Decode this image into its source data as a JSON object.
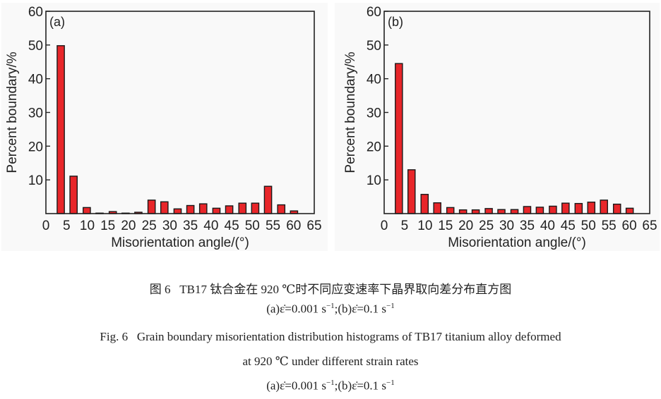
{
  "chart_data": [
    {
      "type": "bar",
      "panel_label": "(a)",
      "xlabel": "Misorientation angle/(°)",
      "ylabel": "Percent boundary/%",
      "xlim": [
        0,
        65
      ],
      "ylim": [
        0,
        60
      ],
      "xticks": [
        "0",
        "5",
        "10",
        "15",
        "20",
        "25",
        "30",
        "35",
        "40",
        "45",
        "50",
        "55",
        "60",
        "65"
      ],
      "yticks": [
        "10",
        "20",
        "30",
        "40",
        "50",
        "60"
      ],
      "x": [
        3.6,
        6.7,
        9.9,
        13.0,
        16.2,
        19.3,
        22.4,
        25.6,
        28.7,
        31.9,
        35.0,
        38.1,
        41.3,
        44.4,
        47.6,
        50.7,
        53.8,
        57.0,
        60.1
      ],
      "values": [
        49.8,
        11.1,
        1.8,
        0.15,
        0.6,
        0.15,
        0.4,
        4.0,
        3.5,
        1.4,
        2.4,
        2.9,
        1.6,
        2.3,
        3.1,
        3.1,
        8.1,
        2.6,
        0.8
      ],
      "bar_color": "#e8262a",
      "grid": false
    },
    {
      "type": "bar",
      "panel_label": "(b)",
      "xlabel": "Misorientation angle/(°)",
      "ylabel": "Percent boundary/%",
      "xlim": [
        0,
        65
      ],
      "ylim": [
        0,
        60
      ],
      "xticks": [
        "0",
        "5",
        "10",
        "15",
        "20",
        "25",
        "30",
        "35",
        "40",
        "45",
        "50",
        "55",
        "60",
        "65"
      ],
      "yticks": [
        "10",
        "20",
        "30",
        "40",
        "50",
        "60"
      ],
      "x": [
        3.6,
        6.7,
        9.9,
        13.0,
        16.2,
        19.3,
        22.4,
        25.6,
        28.7,
        31.9,
        35.0,
        38.1,
        41.3,
        44.4,
        47.6,
        50.7,
        53.8,
        57.0,
        60.1
      ],
      "values": [
        44.5,
        13.0,
        5.7,
        3.2,
        1.8,
        1.1,
        1.1,
        1.5,
        1.2,
        1.2,
        2.1,
        1.9,
        2.2,
        3.1,
        3.0,
        3.4,
        4.0,
        2.8,
        1.6
      ],
      "bar_color": "#e8262a",
      "grid": false
    }
  ],
  "caption": {
    "cn_title": "图 6   TB17 钛合金在 920 ℃时不同应变速率下晶界取向差分布直方图",
    "en_title_1": "Fig. 6   Grain boundary misorientation distribution histograms of TB17 titanium alloy deformed",
    "en_title_2": "at 920 ℃ under different strain rates",
    "rates": {
      "a": "(a)ε̇=0.001 s",
      "a_sup": "−1",
      "b": ";(b)ε̇=0.1 s",
      "b_sup": "−1"
    }
  }
}
